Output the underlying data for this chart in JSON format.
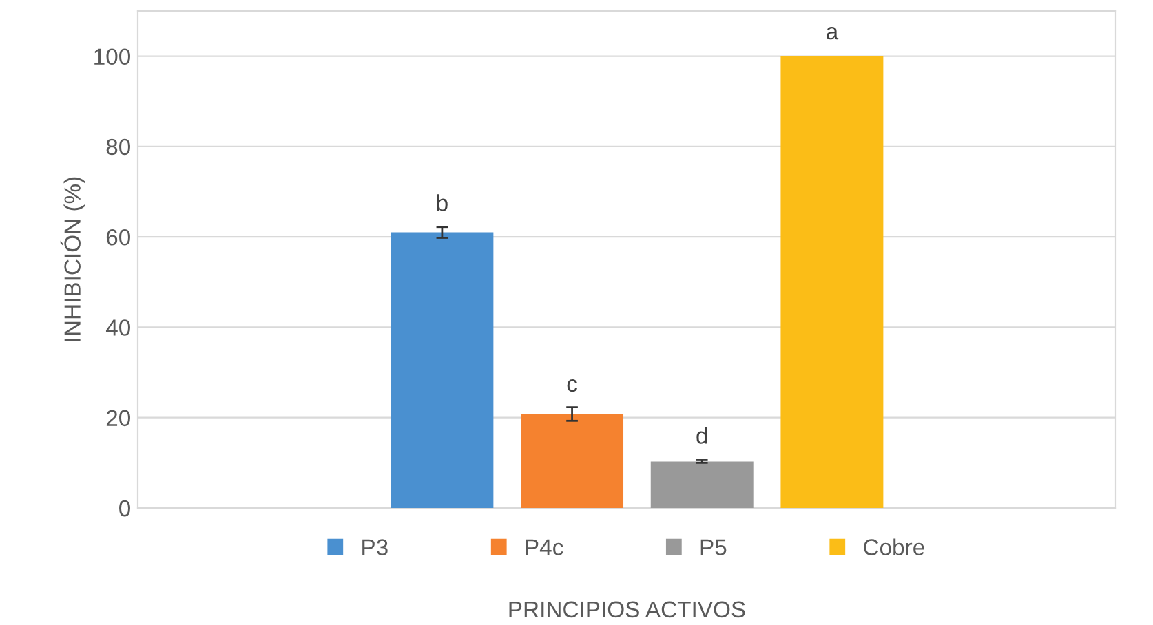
{
  "chart_data": {
    "type": "bar",
    "xlabel": "PRINCIPIOS ACTIVOS",
    "ylabel": "INHIBICIÓN (%)",
    "categories": [
      null
    ],
    "series": [
      {
        "name": "P3",
        "color": "#4a90d0",
        "values": [
          61
        ],
        "errors": [
          1.2
        ]
      },
      {
        "name": "P4c",
        "color": "#f5822f",
        "values": [
          20.8
        ],
        "errors": [
          1.5
        ]
      },
      {
        "name": "P5",
        "color": "#999999",
        "values": [
          10.3
        ],
        "errors": [
          0.3
        ]
      },
      {
        "name": "Cobre",
        "color": "#fbbd17",
        "values": [
          100
        ]
      }
    ],
    "annotations": [
      {
        "text": "b",
        "y": 63
      },
      {
        "text": "c",
        "y": 23
      },
      {
        "text": "d",
        "y": 11.5
      },
      {
        "text": "a",
        "y": 101
      }
    ],
    "ylim": [
      0,
      110
    ],
    "yticks": [
      0,
      20,
      40,
      60,
      80,
      100
    ],
    "grid": "y",
    "legend": "bottom"
  }
}
